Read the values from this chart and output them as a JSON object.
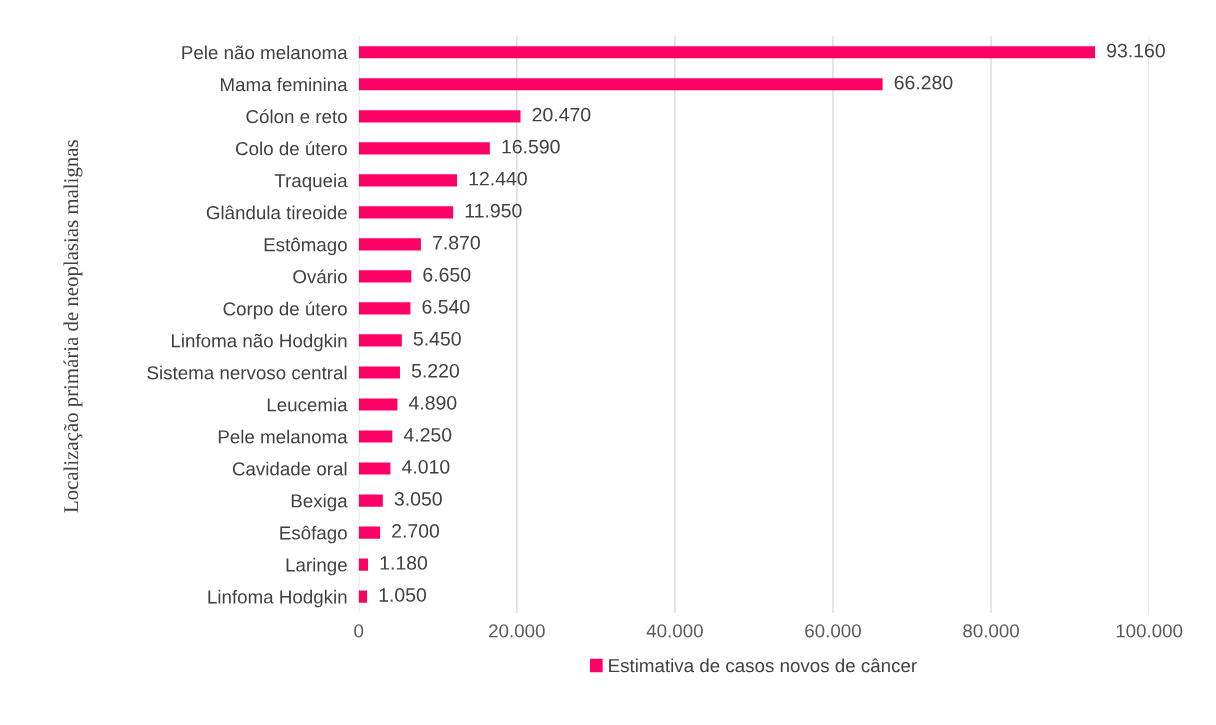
{
  "chart_data": {
    "type": "bar",
    "orientation": "horizontal",
    "ylabel": "Localização primária de neoplasias malignas",
    "categories": [
      "Pele não melanoma",
      "Mama feminina",
      "Cólon e reto",
      "Colo de útero",
      "Traqueia",
      "Glândula tireoide",
      "Estômago",
      "Ovário",
      "Corpo de útero",
      "Linfoma não Hodgkin",
      "Sistema nervoso central",
      "Leucemia",
      "Pele melanoma",
      "Cavidade oral",
      "Bexiga",
      "Esôfago",
      "Laringe",
      "Linfoma Hodgkin"
    ],
    "series": [
      {
        "name": "Estimativa de casos novos de câncer",
        "color": "#ff0066",
        "values": [
          93160,
          66280,
          20470,
          16590,
          12440,
          11950,
          7870,
          6650,
          6540,
          5450,
          5220,
          4890,
          4250,
          4010,
          3050,
          2700,
          1180,
          1050
        ],
        "value_labels": [
          "93.160",
          "66.280",
          "20.470",
          "16.590",
          "12.440",
          "11.950",
          "7.870",
          "6.650",
          "6.540",
          "5.450",
          "5.220",
          "4.890",
          "4.250",
          "4.010",
          "3.050",
          "2.700",
          "1.180",
          "1.050"
        ]
      }
    ],
    "xlim": [
      0,
      100000
    ],
    "xticks": [
      0,
      {
        "value": 20000,
        "label": "20.000"
      },
      {
        "value": 40000,
        "label": "40.000"
      },
      {
        "value": 60000,
        "label": "60.000"
      },
      {
        "value": 80000,
        "label": "80.000"
      },
      {
        "value": 100000,
        "label": "100.000"
      }
    ],
    "grid": "x",
    "legend": "bottom"
  }
}
